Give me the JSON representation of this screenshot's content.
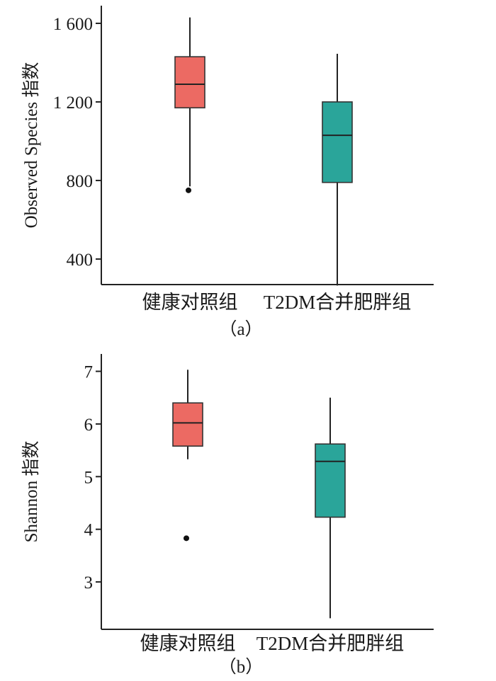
{
  "chart_data": [
    {
      "type": "box",
      "panel_label": "（a）",
      "ylabel": "Observed Species 指数",
      "yticks": [
        {
          "value": 1600,
          "label": "1 600"
        },
        {
          "value": 1200,
          "label": "1 200"
        },
        {
          "value": 800,
          "label": "800"
        },
        {
          "value": 400,
          "label": "400"
        }
      ],
      "ylim": [
        270,
        1690
      ],
      "categories": [
        "健康对照组",
        "T2DM合并肥胖组"
      ],
      "boxes": [
        {
          "category": "健康对照组",
          "color": "#ec6a63",
          "min": 770,
          "q1": 1170,
          "median": 1290,
          "q3": 1430,
          "max": 1630,
          "outliers": [
            750
          ]
        },
        {
          "category": "T2DM合并肥胖组",
          "color": "#2aa59a",
          "min": 265,
          "q1": 790,
          "median": 1030,
          "q3": 1200,
          "max": 1445,
          "outliers": []
        }
      ]
    },
    {
      "type": "box",
      "panel_label": "（b）",
      "ylabel": "Shannon 指数",
      "yticks": [
        {
          "value": 7,
          "label": "7"
        },
        {
          "value": 6,
          "label": "6"
        },
        {
          "value": 5,
          "label": "5"
        },
        {
          "value": 4,
          "label": "4"
        },
        {
          "value": 3,
          "label": "3"
        }
      ],
      "ylim": [
        2.1,
        7.33
      ],
      "categories": [
        "健康对照组",
        "T2DM合并肥胖组"
      ],
      "boxes": [
        {
          "category": "健康对照组",
          "color": "#ec6a63",
          "min": 5.33,
          "q1": 5.58,
          "median": 6.02,
          "q3": 6.4,
          "max": 7.03,
          "outliers": [
            3.83
          ]
        },
        {
          "category": "T2DM合并肥胖组",
          "color": "#2aa59a",
          "min": 2.31,
          "q1": 4.23,
          "median": 5.29,
          "q3": 5.62,
          "max": 6.5,
          "outliers": []
        }
      ]
    }
  ]
}
